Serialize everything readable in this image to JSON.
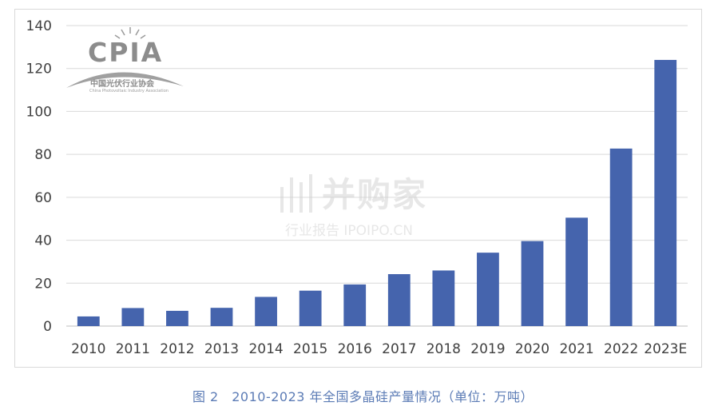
{
  "chart_data": {
    "type": "bar",
    "categories": [
      "2010",
      "2011",
      "2012",
      "2013",
      "2014",
      "2015",
      "2016",
      "2017",
      "2018",
      "2019",
      "2020",
      "2021",
      "2022",
      "2023E"
    ],
    "values": [
      4.5,
      8.4,
      7.1,
      8.5,
      13.6,
      16.5,
      19.4,
      24.2,
      25.9,
      34.2,
      39.6,
      50.5,
      82.7,
      124
    ],
    "ylim": [
      0,
      140
    ],
    "yticks": [
      0,
      20,
      40,
      60,
      80,
      100,
      120,
      140
    ],
    "grid": true,
    "bar_color": "#4564ad"
  },
  "caption": "图 2　2010-2023 年全国多晶硅产量情况（单位：万吨）",
  "logo": {
    "main": "CPIA",
    "sub": "中国光伏行业协会",
    "sub_en": "China Photovoltaic Industry Association"
  },
  "watermark": {
    "main": "并购家",
    "sub": "行业报告 IPOIPO.CN"
  }
}
